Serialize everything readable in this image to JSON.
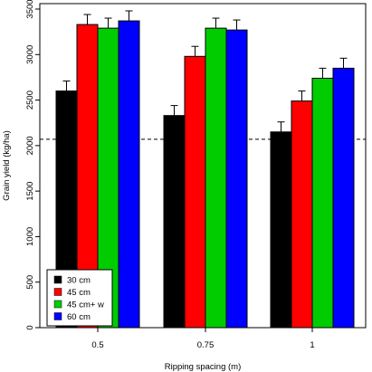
{
  "chart_data": {
    "type": "bar",
    "xlabel": "Ripping spacing (m)",
    "ylabel": "Grain yield (kg/ha)",
    "categories": [
      "0.5",
      "0.75",
      "1"
    ],
    "ylim": [
      0,
      3500
    ],
    "yticks": [
      0,
      500,
      1000,
      1500,
      2000,
      2500,
      3000,
      3500
    ],
    "reference_line": 2070,
    "series": [
      {
        "name": "30 cm",
        "color": "#000000",
        "values": [
          2600,
          2330,
          2150
        ],
        "errors": [
          110,
          110,
          110
        ]
      },
      {
        "name": "45 cm",
        "color": "#ff0000",
        "values": [
          3330,
          2980,
          2490
        ],
        "errors": [
          110,
          110,
          110
        ]
      },
      {
        "name": "45 cm+ w",
        "color": "#00cc00",
        "values": [
          3290,
          3290,
          2740
        ],
        "errors": [
          110,
          110,
          110
        ]
      },
      {
        "name": "60 cm",
        "color": "#0000ff",
        "values": [
          3370,
          3270,
          2850
        ],
        "errors": [
          110,
          110,
          110
        ]
      }
    ],
    "legend_position": "bottom-left",
    "grid": false
  }
}
